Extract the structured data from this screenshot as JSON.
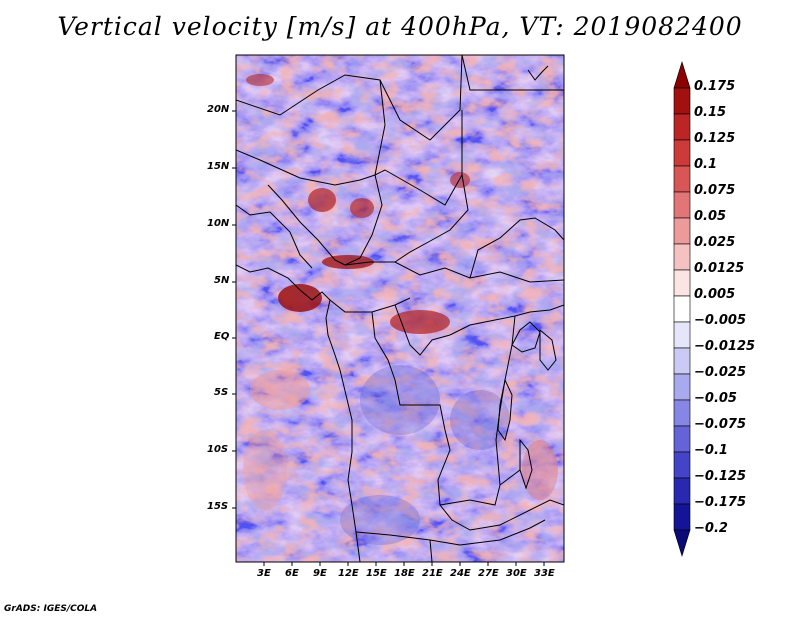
{
  "title": "Vertical velocity [m/s] at 400hPa, VT: 2019082400",
  "credit": "GrADS: IGES/COLA",
  "lat_labels": [
    "20N",
    "15N",
    "10N",
    "5N",
    "EQ",
    "5S",
    "10S",
    "15S"
  ],
  "lon_labels": [
    "3E",
    "6E",
    "9E",
    "12E",
    "15E",
    "18E",
    "21E",
    "24E",
    "27E",
    "30E",
    "33E"
  ],
  "colorbar": {
    "labels": [
      "0.175",
      "0.15",
      "0.125",
      "0.1",
      "0.075",
      "0.05",
      "0.025",
      "0.0125",
      "0.005",
      "-0.005",
      "-0.0125",
      "-0.025",
      "-0.05",
      "-0.075",
      "-0.1",
      "-0.125",
      "-0.175",
      "-0.2"
    ],
    "colors": [
      "#8b0000",
      "#a31010",
      "#bb2525",
      "#cc3a3a",
      "#d85656",
      "#e27575",
      "#ec9a9a",
      "#f5c2c2",
      "#fbe4e4",
      "#ffffff",
      "#e6e6fb",
      "#cacaf5",
      "#a9a9ee",
      "#8686e4",
      "#6464d8",
      "#4444c8",
      "#2828b0",
      "#141496",
      "#0a0a78"
    ]
  }
}
